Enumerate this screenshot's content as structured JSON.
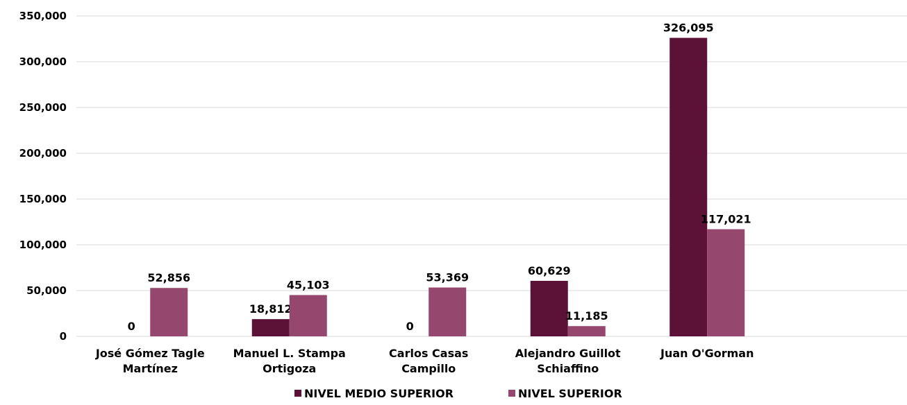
{
  "chart_data": {
    "type": "bar",
    "title": "",
    "xlabel": "",
    "ylabel": "",
    "categories": [
      [
        "José Gómez Tagle",
        "Martínez"
      ],
      [
        "Manuel L. Stampa",
        "Ortigoza"
      ],
      [
        "Carlos Casas",
        "Campillo"
      ],
      [
        "Alejandro Guillot",
        "Schiaffino"
      ],
      [
        "Juan O'Gorman"
      ]
    ],
    "series": [
      {
        "name": "NIVEL MEDIO SUPERIOR",
        "color": "#5c1236",
        "values": [
          0,
          18812,
          0,
          60629,
          326095
        ],
        "labels": [
          "0",
          "18,812",
          "0",
          "60,629",
          "326,095"
        ]
      },
      {
        "name": "NIVEL SUPERIOR",
        "color": "#96476d",
        "values": [
          52856,
          45103,
          53369,
          11185,
          117021
        ],
        "labels": [
          "52,856",
          "45,103",
          "53,369",
          "11,185",
          "117,021"
        ]
      }
    ],
    "ylim": [
      0,
      350000
    ],
    "yticks": [
      0,
      50000,
      100000,
      150000,
      200000,
      250000,
      300000,
      350000
    ],
    "ytick_labels": [
      "0",
      "50,000",
      "100,000",
      "150,000",
      "200,000",
      "250,000",
      "300,000",
      "350,000"
    ],
    "grid": true,
    "legend_position": "bottom-center"
  }
}
